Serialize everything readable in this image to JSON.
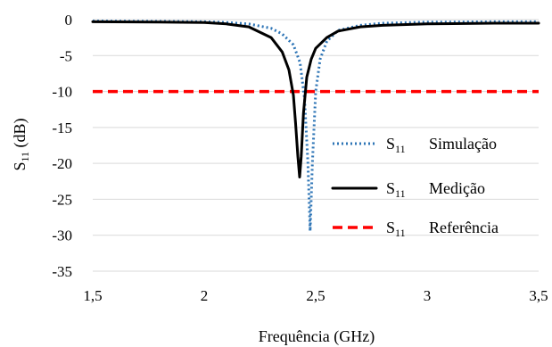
{
  "chart_data": {
    "type": "line",
    "xlabel": "Frequência (GHz)",
    "ylabel_main": "S",
    "ylabel_sub": "11",
    "ylabel_unit": " (dB)",
    "xlim": [
      1.5,
      3.5
    ],
    "ylim": [
      -35,
      0
    ],
    "x_ticks": [
      1.5,
      2,
      2.5,
      3,
      3.5
    ],
    "x_tick_labels": [
      "1,5",
      "2",
      "2,5",
      "3",
      "3,5"
    ],
    "y_ticks": [
      0,
      -5,
      -10,
      -15,
      -20,
      -25,
      -30,
      -35
    ],
    "y_tick_labels": [
      "0",
      "-5",
      "-10",
      "-15",
      "-20",
      "-25",
      "-30",
      "-35"
    ],
    "grid": "horizontal",
    "legend_position": "right",
    "series": [
      {
        "name": "Simulação",
        "legend_main": "S",
        "legend_sub": "11",
        "color": "#2E75B6",
        "style": "dotted",
        "points": [
          [
            1.5,
            -0.2
          ],
          [
            1.8,
            -0.25
          ],
          [
            2.0,
            -0.3
          ],
          [
            2.1,
            -0.4
          ],
          [
            2.2,
            -0.6
          ],
          [
            2.3,
            -1.2
          ],
          [
            2.35,
            -2.0
          ],
          [
            2.4,
            -3.5
          ],
          [
            2.43,
            -6.0
          ],
          [
            2.45,
            -11.0
          ],
          [
            2.465,
            -20.0
          ],
          [
            2.475,
            -29.4
          ],
          [
            2.485,
            -20.0
          ],
          [
            2.5,
            -10.0
          ],
          [
            2.52,
            -5.5
          ],
          [
            2.55,
            -3.0
          ],
          [
            2.6,
            -1.5
          ],
          [
            2.7,
            -0.8
          ],
          [
            2.8,
            -0.5
          ],
          [
            3.0,
            -0.35
          ],
          [
            3.3,
            -0.3
          ],
          [
            3.5,
            -0.3
          ]
        ]
      },
      {
        "name": "Medição",
        "legend_main": "S",
        "legend_sub": "11",
        "color": "#000000",
        "style": "solid",
        "points": [
          [
            1.5,
            -0.3
          ],
          [
            1.8,
            -0.35
          ],
          [
            2.0,
            -0.4
          ],
          [
            2.1,
            -0.6
          ],
          [
            2.2,
            -1.0
          ],
          [
            2.3,
            -2.5
          ],
          [
            2.35,
            -4.5
          ],
          [
            2.38,
            -7.0
          ],
          [
            2.4,
            -10.5
          ],
          [
            2.41,
            -14.5
          ],
          [
            2.42,
            -19.0
          ],
          [
            2.428,
            -21.9
          ],
          [
            2.435,
            -19.0
          ],
          [
            2.445,
            -13.0
          ],
          [
            2.46,
            -8.0
          ],
          [
            2.48,
            -5.5
          ],
          [
            2.5,
            -4.0
          ],
          [
            2.55,
            -2.5
          ],
          [
            2.6,
            -1.6
          ],
          [
            2.7,
            -1.0
          ],
          [
            2.8,
            -0.8
          ],
          [
            3.0,
            -0.6
          ],
          [
            3.3,
            -0.5
          ],
          [
            3.5,
            -0.5
          ]
        ]
      },
      {
        "name": "Referência",
        "legend_main": "S",
        "legend_sub": "11",
        "color": "#FF0000",
        "style": "dashed",
        "points": [
          [
            1.5,
            -10
          ],
          [
            3.5,
            -10
          ]
        ]
      }
    ]
  }
}
